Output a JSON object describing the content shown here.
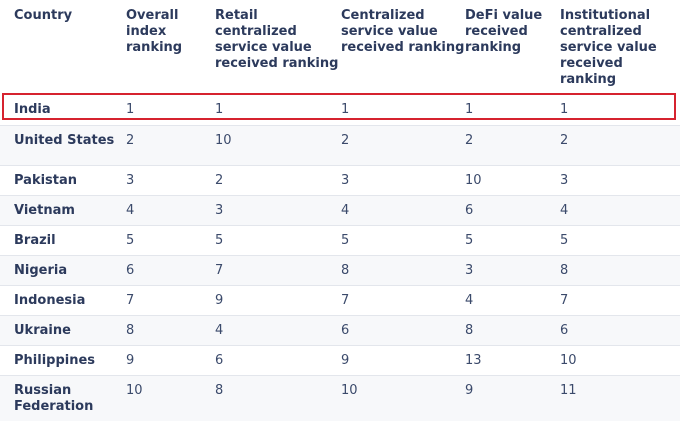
{
  "table": {
    "headers": [
      "Country",
      "Overall index ranking",
      "Retail centralized service value received ranking",
      "Centralized service value received ranking",
      "DeFi value received ranking",
      "Institutional centralized service value received ranking"
    ],
    "rows": [
      [
        "India",
        "1",
        "1",
        "1",
        "1",
        "1"
      ],
      [
        "United States",
        "2",
        "10",
        "2",
        "2",
        "2"
      ],
      [
        "Pakistan",
        "3",
        "2",
        "3",
        "10",
        "3"
      ],
      [
        "Vietnam",
        "4",
        "3",
        "4",
        "6",
        "4"
      ],
      [
        "Brazil",
        "5",
        "5",
        "5",
        "5",
        "5"
      ],
      [
        "Nigeria",
        "6",
        "7",
        "8",
        "3",
        "8"
      ],
      [
        "Indonesia",
        "7",
        "9",
        "7",
        "4",
        "7"
      ],
      [
        "Ukraine",
        "8",
        "4",
        "6",
        "8",
        "6"
      ],
      [
        "Philippines",
        "9",
        "6",
        "9",
        "13",
        "10"
      ],
      [
        "Russian Federation",
        "10",
        "8",
        "10",
        "9",
        "11"
      ]
    ],
    "highlighted_row": "India"
  },
  "colors": {
    "text": "#2c3a5c",
    "highlight": "#d6232f",
    "divider": "#e3e6ec"
  }
}
